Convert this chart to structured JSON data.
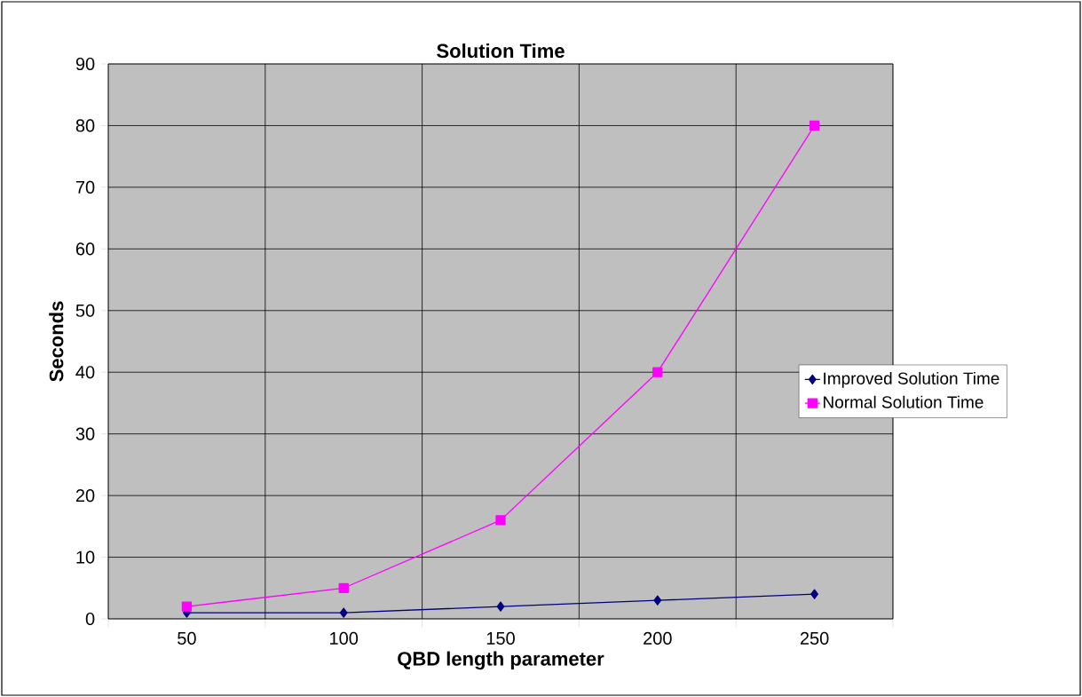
{
  "chart_data": {
    "type": "line",
    "title": "Solution Time",
    "xlabel": "QBD length parameter",
    "ylabel": "Seconds",
    "categories": [
      "50",
      "100",
      "150",
      "200",
      "250"
    ],
    "series": [
      {
        "name": "Improved Solution Time",
        "color": "#000080",
        "marker": "diamond",
        "values": [
          1,
          1,
          2,
          3,
          4
        ]
      },
      {
        "name": "Normal Solution Time",
        "color": "#ff00ff",
        "marker": "square",
        "values": [
          2,
          5,
          16,
          40,
          80
        ]
      }
    ],
    "ylim": [
      0,
      90
    ],
    "yticks": [
      0,
      10,
      20,
      30,
      40,
      50,
      60,
      70,
      80,
      90
    ],
    "grid": true,
    "legend": "right",
    "line_style": "solid"
  }
}
